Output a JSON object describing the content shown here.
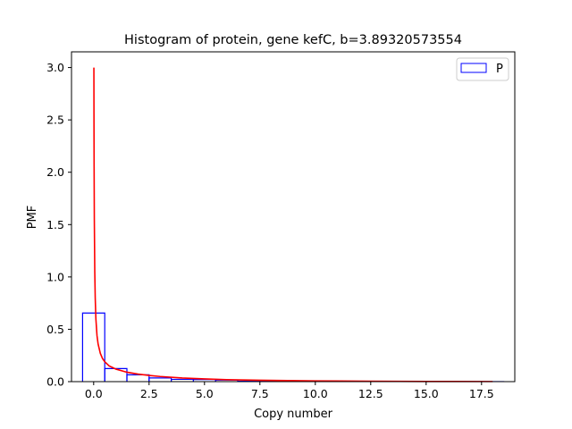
{
  "chart_data": {
    "type": "histogram",
    "title": "Histogram of protein, gene kefC, b=3.89320573554",
    "xlabel": "Copy number",
    "ylabel": "PMF",
    "xlim": [
      -1.0,
      19.0
    ],
    "ylim": [
      0.0,
      3.15
    ],
    "xticks": [
      0.0,
      2.5,
      5.0,
      7.5,
      10.0,
      12.5,
      15.0,
      17.5
    ],
    "xtick_labels": [
      "0.0",
      "2.5",
      "5.0",
      "7.5",
      "10.0",
      "12.5",
      "15.0",
      "17.5"
    ],
    "yticks": [
      0.0,
      0.5,
      1.0,
      1.5,
      2.0,
      2.5,
      3.0
    ],
    "ytick_labels": [
      "0.0",
      "0.5",
      "1.0",
      "1.5",
      "2.0",
      "2.5",
      "3.0"
    ],
    "grid": false,
    "legend": {
      "placement": "top-right",
      "entries": [
        "P"
      ]
    },
    "histogram": {
      "name": "P",
      "color": "#0000ff",
      "bin_edges": [
        -0.5,
        0.5,
        1.5,
        2.5,
        3.5,
        4.5,
        5.5,
        6.5,
        7.5,
        8.5,
        9.5,
        10.5,
        11.5,
        12.5,
        13.5,
        14.5,
        15.5,
        16.5,
        17.5,
        18.5
      ],
      "values": [
        0.655,
        0.125,
        0.065,
        0.035,
        0.022,
        0.02,
        0.015,
        0.003,
        0.003,
        0.002,
        0.002,
        0.001,
        0.001,
        0.001,
        0.001,
        0.0005,
        0.0005,
        0.0005,
        0.0005
      ]
    },
    "fit_curve": {
      "color": "#ff0000",
      "x": [
        0.01,
        0.015,
        0.02,
        0.03,
        0.05,
        0.07,
        0.1,
        0.15,
        0.2,
        0.3,
        0.4,
        0.5,
        0.7,
        1.0,
        1.5,
        2.0,
        2.5,
        3.0,
        4.0,
        5.0,
        6.0,
        7.5,
        10.0,
        12.5,
        15.0,
        18.0
      ],
      "y": [
        3.0,
        2.45,
        2.05,
        1.55,
        1.05,
        0.8,
        0.6,
        0.44,
        0.36,
        0.27,
        0.22,
        0.19,
        0.15,
        0.12,
        0.09,
        0.072,
        0.059,
        0.049,
        0.035,
        0.026,
        0.019,
        0.013,
        0.007,
        0.004,
        0.002,
        0.001
      ]
    }
  }
}
